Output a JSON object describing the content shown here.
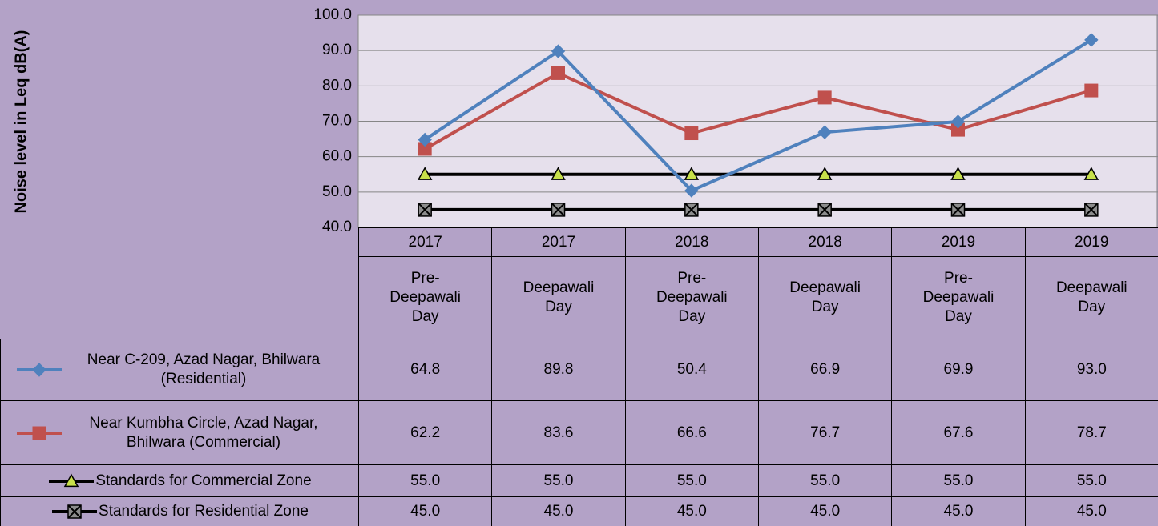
{
  "chart_data": {
    "type": "line",
    "y_axis_label": "Noise level in Leq dB(A)",
    "category_years": [
      "2017",
      "2017",
      "2018",
      "2018",
      "2019",
      "2019"
    ],
    "categories": [
      "Pre-Deepawali Day",
      "Deepawali Day",
      "Pre-Deepawali Day",
      "Deepawali Day",
      "Pre-Deepawali Day",
      "Deepawali Day"
    ],
    "ylim": [
      40,
      100
    ],
    "yticks": [
      {
        "value": 40,
        "label": "40.0"
      },
      {
        "value": 50,
        "label": "50.0"
      },
      {
        "value": 60,
        "label": "60.0"
      },
      {
        "value": 70,
        "label": "70.0"
      },
      {
        "value": 80,
        "label": "80.0"
      },
      {
        "value": 90,
        "label": "90.0"
      },
      {
        "value": 100,
        "label": "100.0"
      }
    ],
    "grid": true,
    "series": [
      {
        "name": "Near C-209, Azad Nagar, Bhilwara (Residential)",
        "color": "#4f81bd",
        "marker": "diamond",
        "marker_fill": "#4f81bd",
        "values": [
          64.8,
          89.8,
          50.4,
          66.9,
          69.9,
          93.0
        ],
        "value_labels": [
          "64.8",
          "89.8",
          "50.4",
          "66.9",
          "69.9",
          "93.0"
        ]
      },
      {
        "name": "Near Kumbha Circle, Azad Nagar, Bhilwara (Commercial)",
        "color": "#c0504d",
        "marker": "square",
        "marker_fill": "#c0504d",
        "values": [
          62.2,
          83.6,
          66.6,
          76.7,
          67.6,
          78.7
        ],
        "value_labels": [
          "62.2",
          "83.6",
          "66.6",
          "76.7",
          "67.6",
          "78.7"
        ]
      },
      {
        "name": "Standards for Commercial Zone",
        "color": "#000000",
        "marker": "triangle",
        "marker_fill": "#c8e04a",
        "values": [
          55,
          55,
          55,
          55,
          55,
          55
        ],
        "value_labels": [
          "55.0",
          "55.0",
          "55.0",
          "55.0",
          "55.0",
          "55.0"
        ]
      },
      {
        "name": "Standards for Residential Zone",
        "color": "#000000",
        "marker": "x-box",
        "marker_fill": "#8c8c8c",
        "values": [
          45,
          45,
          45,
          45,
          45,
          45
        ],
        "value_labels": [
          "45.0",
          "45.0",
          "45.0",
          "45.0",
          "45.0",
          "45.0"
        ]
      }
    ]
  }
}
